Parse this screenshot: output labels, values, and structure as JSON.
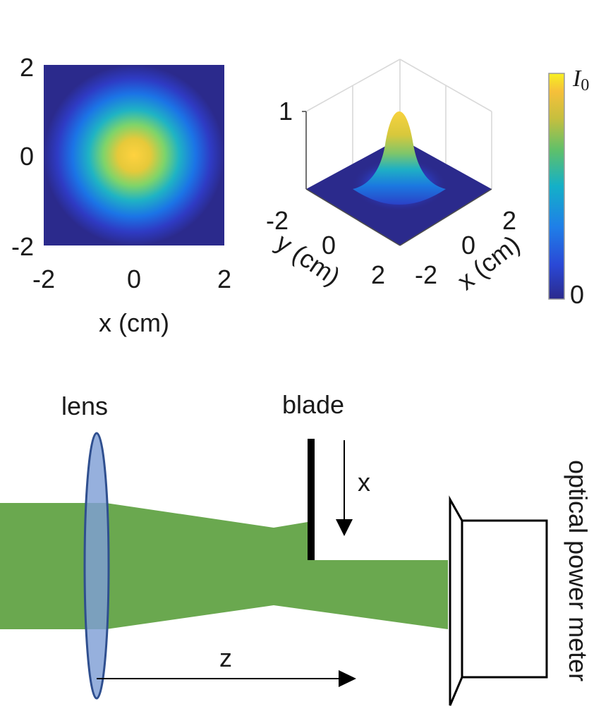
{
  "top": {
    "heatmap": {
      "y_ticks": [
        "2",
        "0",
        "-2"
      ],
      "x_ticks": [
        "-2",
        "0",
        "2"
      ],
      "xlabel": "x (cm)"
    },
    "surface": {
      "z_tick": "1",
      "y_ticks": [
        "-2",
        "0",
        "2"
      ],
      "x_ticks": [
        "-2",
        "0",
        "2"
      ],
      "ylabel": "y (cm)",
      "xlabel": "x (cm)"
    },
    "colorbar": {
      "max_symbol": "I",
      "max_subscript": "0",
      "min_label": "0"
    }
  },
  "bottom": {
    "lens_label": "lens",
    "blade_label": "blade",
    "blade_motion_label": "x",
    "axis_label": "z",
    "detector_label": "optical power meter"
  },
  "colors": {
    "beam": "#6aa84f",
    "lens_fill": "#7f9fd6",
    "lens_stroke": "#2f4f8f",
    "blade": "#000000",
    "heat_low": "#2b2a8c",
    "heat_high": "#f4e04d"
  }
}
